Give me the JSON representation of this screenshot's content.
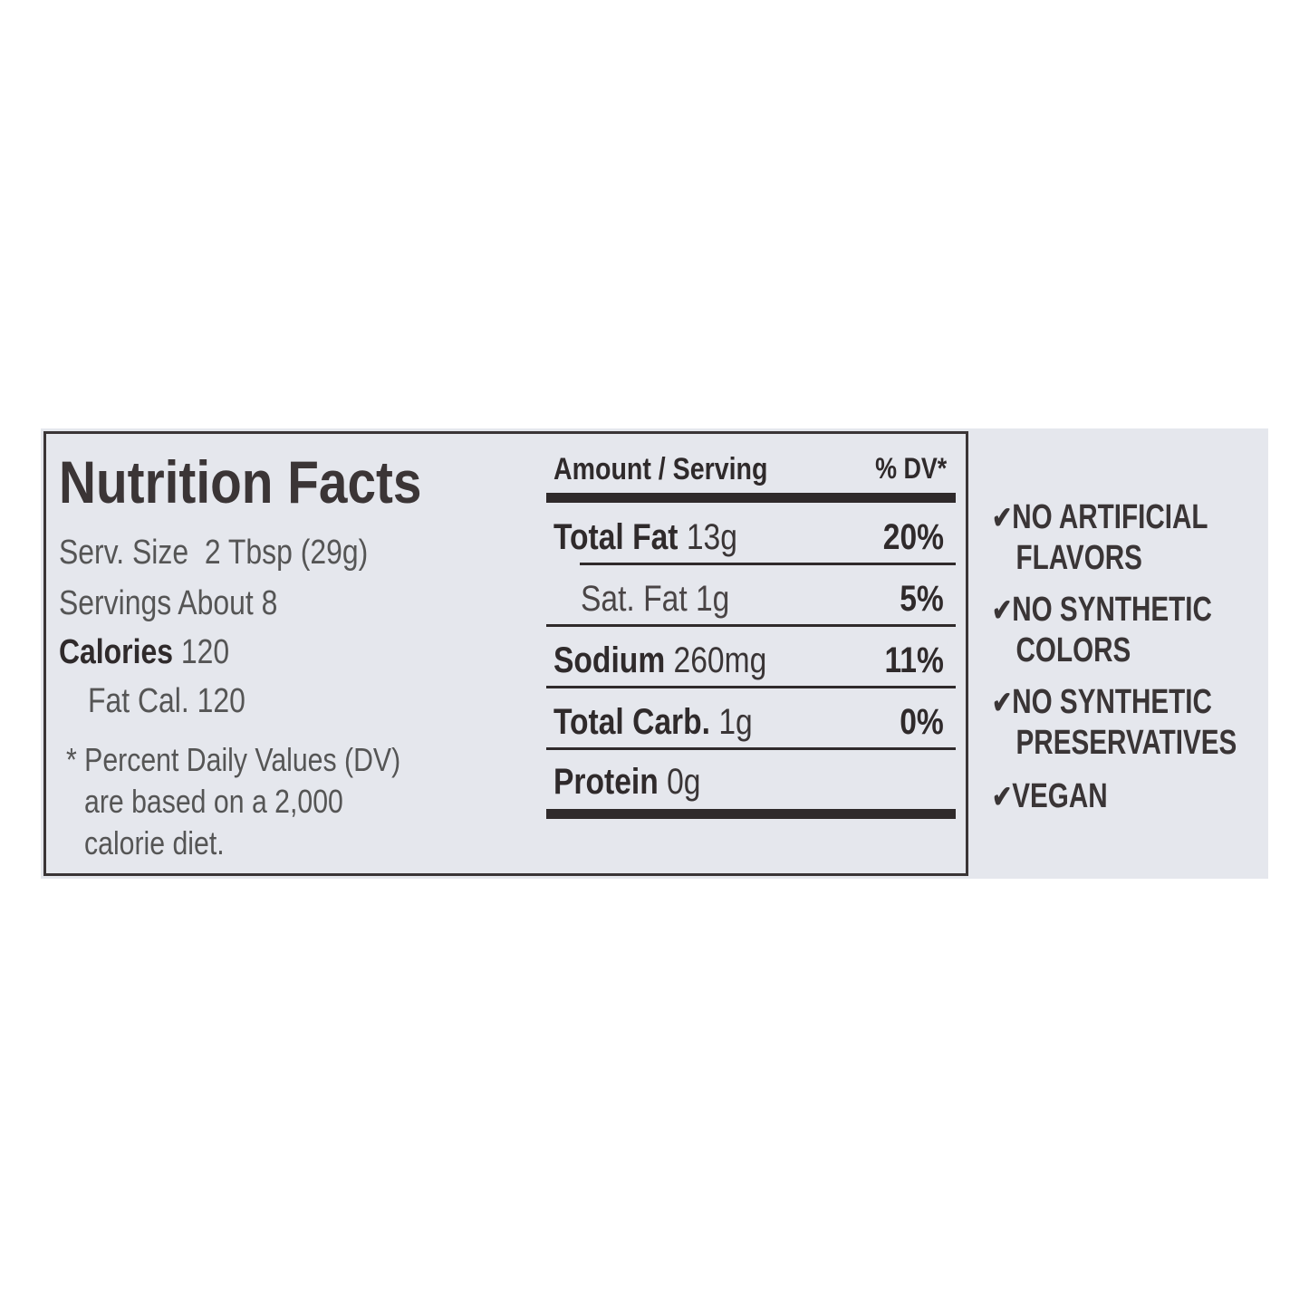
{
  "title": "Nutrition Facts",
  "serving_size_label": "Serv. Size",
  "serving_size_value": "2 Tbsp (29g)",
  "servings": "Servings About 8",
  "calories_label": "Calories",
  "calories_value": "120",
  "fat_calories": "Fat Cal. 120",
  "footnote": [
    "* Percent Daily Values (DV)",
    "are based on a 2,000",
    "calorie diet."
  ],
  "header": {
    "amount": "Amount / Serving",
    "dv": "% DV*"
  },
  "rows": [
    {
      "name": "Total Fat",
      "amount": "13g",
      "dv": "20%"
    },
    {
      "name": "Sat. Fat",
      "amount": "1g",
      "dv": "5%"
    },
    {
      "name": "Sodium",
      "amount": "260mg",
      "dv": "11%"
    },
    {
      "name": "Total Carb.",
      "amount": "1g",
      "dv": "0%"
    },
    {
      "name": "Protein",
      "amount": "0g",
      "dv": ""
    }
  ],
  "claims": [
    {
      "line1": "NO ARTIFICIAL",
      "line2": "FLAVORS"
    },
    {
      "line1": "NO SYNTHETIC",
      "line2": "COLORS"
    },
    {
      "line1": "NO SYNTHETIC",
      "line2": "PRESERVATIVES"
    },
    {
      "line1": "VEGAN",
      "line2": ""
    }
  ],
  "check_icon": "checkmark-icon",
  "colors": {
    "label_bg": "#e5e7ed",
    "ink": "#3a3536",
    "cap_brown": "#8a6440"
  }
}
